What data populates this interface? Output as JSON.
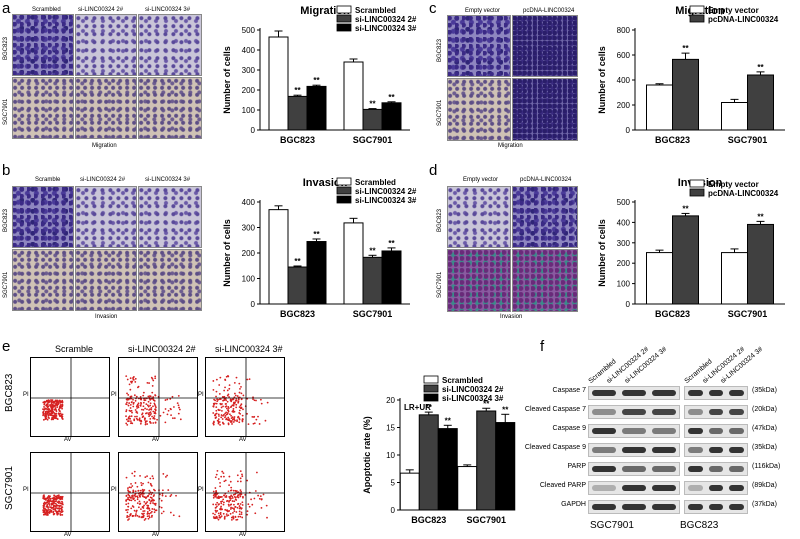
{
  "panels": {
    "a": {
      "letter": "a",
      "images": {
        "cols": [
          "Scrambled",
          "si-LINC00324 2#",
          "si-LINC00324 3#"
        ],
        "rows": [
          "BGC823",
          "SGC7901"
        ],
        "caption": "Migration"
      }
    },
    "b": {
      "letter": "b",
      "images": {
        "cols": [
          "Scramble",
          "si-LINC00324 2#",
          "si-LINC00324 3#"
        ],
        "rows": [
          "BGC823",
          "SGC7901"
        ],
        "caption": "Invasion"
      }
    },
    "c": {
      "letter": "c",
      "images": {
        "cols": [
          "Empty vector",
          "pcDNA-LINC00324"
        ],
        "rows": [
          "BGC823",
          "SGC7901"
        ],
        "caption": "Migration"
      }
    },
    "d": {
      "letter": "d",
      "images": {
        "cols": [
          "Empty vector",
          "pcDNA-LINC00324"
        ],
        "rows": [
          "BGC823",
          "SGC7901"
        ],
        "caption": "Invasion"
      }
    },
    "e": {
      "letter": "e",
      "facs": {
        "cols": [
          "Scramble",
          "si-LINC00324 2#",
          "si-LINC00324 3#"
        ],
        "rows": [
          "BGC823",
          "SGC7901"
        ],
        "xaxis": "AV",
        "yaxis": "PI"
      }
    },
    "f": {
      "letter": "f",
      "lane_labels": [
        "Scrambled",
        "si-LINC00324 2#",
        "si-LINC00324 3#",
        "Scrambled",
        "si-LINC00324 2#",
        "si-LINC00324 3#"
      ],
      "proteins": [
        {
          "name": "Caspase 7",
          "kda": "(35kDa)"
        },
        {
          "name": "Cleaved Caspase 7",
          "kda": "(20kDa)"
        },
        {
          "name": "Caspase 9",
          "kda": "(47kDa)"
        },
        {
          "name": "Cleaved Caspase 9",
          "kda": "(35kDa)"
        },
        {
          "name": "PARP",
          "kda": "(116kDa)"
        },
        {
          "name": "Cleaved PARP",
          "kda": "(89kDa)"
        },
        {
          "name": "GAPDH",
          "kda": "(37kDa)"
        }
      ],
      "cell_lines": [
        "SGC7901",
        "BGC823"
      ]
    }
  },
  "colors": {
    "white_bar": "#ffffff",
    "dark_bar": "#404040",
    "black_bar": "#000000"
  },
  "chart_data": [
    {
      "id": "a",
      "type": "bar",
      "title": "Migration",
      "ylabel": "Number of cells",
      "categories": [
        "BGC823",
        "SGC7901"
      ],
      "ylim": [
        0,
        500
      ],
      "yticks": [
        0,
        100,
        200,
        300,
        400,
        500
      ],
      "series": [
        {
          "name": "Scrambled",
          "values": [
            465,
            340
          ],
          "errors": [
            30,
            15
          ],
          "sig": [
            "",
            ""
          ]
        },
        {
          "name": "si-LINC00324 2#",
          "values": [
            168,
            103
          ],
          "errors": [
            6,
            4
          ],
          "sig": [
            "**",
            "**"
          ]
        },
        {
          "name": "si-LINC00324 3#",
          "values": [
            218,
            136
          ],
          "errors": [
            6,
            5
          ],
          "sig": [
            "**",
            "**"
          ]
        }
      ],
      "legend": "top-right"
    },
    {
      "id": "b",
      "type": "bar",
      "title": "Invasion",
      "ylabel": "Number of cells",
      "categories": [
        "BGC823",
        "SGC7901"
      ],
      "ylim": [
        0,
        400
      ],
      "yticks": [
        0,
        100,
        200,
        300,
        400
      ],
      "series": [
        {
          "name": "Scrambled",
          "values": [
            370,
            318
          ],
          "errors": [
            15,
            18
          ],
          "sig": [
            "",
            ""
          ]
        },
        {
          "name": "si-LINC00324 2#",
          "values": [
            145,
            183
          ],
          "errors": [
            4,
            8
          ],
          "sig": [
            "**",
            "**"
          ]
        },
        {
          "name": "si-LINC00324 3#",
          "values": [
            245,
            208
          ],
          "errors": [
            10,
            12
          ],
          "sig": [
            "**",
            "**"
          ]
        }
      ],
      "legend": "top-right"
    },
    {
      "id": "c",
      "type": "bar",
      "title": "Migration",
      "ylabel": "Number of cells",
      "categories": [
        "BGC823",
        "SGC7901"
      ],
      "ylim": [
        0,
        800
      ],
      "yticks": [
        0,
        200,
        400,
        600,
        800
      ],
      "series": [
        {
          "name": "Empty vector",
          "values": [
            360,
            220
          ],
          "errors": [
            10,
            25
          ],
          "sig": [
            "",
            ""
          ]
        },
        {
          "name": "pcDNA-LINC00324",
          "values": [
            565,
            440
          ],
          "errors": [
            50,
            25
          ],
          "sig": [
            "**",
            "**"
          ]
        }
      ],
      "legend": "top-right"
    },
    {
      "id": "d",
      "type": "bar",
      "title": "Invasion",
      "ylabel": "Number of cells",
      "categories": [
        "BGC823",
        "SGC7901"
      ],
      "ylim": [
        0,
        500
      ],
      "yticks": [
        0,
        100,
        200,
        300,
        400,
        500
      ],
      "series": [
        {
          "name": "Empty vector",
          "values": [
            252,
            252
          ],
          "errors": [
            12,
            18
          ],
          "sig": [
            "",
            ""
          ]
        },
        {
          "name": "pcDNA-LINC00324",
          "values": [
            432,
            390
          ],
          "errors": [
            12,
            15
          ],
          "sig": [
            "**",
            "**"
          ]
        }
      ],
      "legend": "top-right"
    },
    {
      "id": "e",
      "type": "bar",
      "title": "",
      "ylabel": "Apoptotic rate (%)",
      "annotation": "LR+UR",
      "categories": [
        "BGC823",
        "SGC7901"
      ],
      "ylim": [
        0,
        20
      ],
      "yticks": [
        0,
        5,
        10,
        15,
        20
      ],
      "series": [
        {
          "name": "Scrambled",
          "values": [
            6.7,
            7.9
          ],
          "errors": [
            0.6,
            0.3
          ],
          "sig": [
            "",
            ""
          ]
        },
        {
          "name": "si-LINC00324 2#",
          "values": [
            17.3,
            18.0
          ],
          "errors": [
            0.5,
            0.5
          ],
          "sig": [
            "**",
            "**"
          ]
        },
        {
          "name": "si-LINC00324 3#",
          "values": [
            14.8,
            15.9
          ],
          "errors": [
            0.6,
            1.5
          ],
          "sig": [
            "**",
            "**"
          ]
        }
      ],
      "legend": "top-right"
    }
  ]
}
